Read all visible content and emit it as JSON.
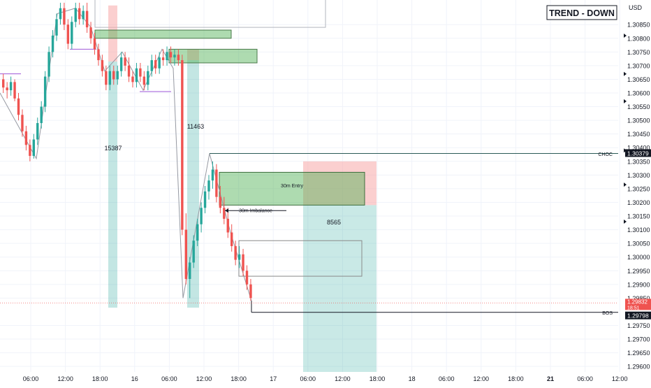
{
  "chart_data": {
    "type": "candlestick",
    "title": "",
    "currency": "USD",
    "trend_label": "TREND - DOWN",
    "y_ticks": [
      "1.30850",
      "1.30800",
      "1.30750",
      "1.30700",
      "1.30650",
      "1.30600",
      "1.30550",
      "1.30500",
      "1.30450",
      "1.30400",
      "1.30350",
      "1.30300",
      "1.30250",
      "1.30200",
      "1.30150",
      "1.30100",
      "1.30050",
      "1.30000",
      "1.29950",
      "1.29900",
      "1.29850",
      "1.29750",
      "1.29700",
      "1.29650",
      "1.29600"
    ],
    "ylim": [
      1.2958,
      1.3094
    ],
    "x_ticks": [
      {
        "label": "06:00",
        "bold": false
      },
      {
        "label": "12:00",
        "bold": false
      },
      {
        "label": "18:00",
        "bold": false
      },
      {
        "label": "16",
        "bold": false
      },
      {
        "label": "06:00",
        "bold": false
      },
      {
        "label": "12:00",
        "bold": false
      },
      {
        "label": "18:00",
        "bold": false
      },
      {
        "label": "17",
        "bold": false
      },
      {
        "label": "06:00",
        "bold": false
      },
      {
        "label": "12:00",
        "bold": false
      },
      {
        "label": "18:00",
        "bold": false
      },
      {
        "label": "18",
        "bold": false
      },
      {
        "label": "06:00",
        "bold": false
      },
      {
        "label": "12:00",
        "bold": false
      },
      {
        "label": "18:00",
        "bold": false
      },
      {
        "label": "21",
        "bold": true
      },
      {
        "label": "06:00",
        "bold": false
      },
      {
        "label": "12:00",
        "bold": false
      }
    ],
    "grid": true,
    "candles": [
      [
        1.3065,
        1.3067,
        1.306,
        1.3062
      ],
      [
        1.3062,
        1.3064,
        1.3058,
        1.3061
      ],
      [
        1.3061,
        1.3066,
        1.3059,
        1.3064
      ],
      [
        1.3064,
        1.3065,
        1.3057,
        1.3058
      ],
      [
        1.3058,
        1.306,
        1.305,
        1.3052
      ],
      [
        1.3052,
        1.3054,
        1.3044,
        1.3046
      ],
      [
        1.3046,
        1.3048,
        1.3039,
        1.3041
      ],
      [
        1.3041,
        1.3043,
        1.3035,
        1.3037
      ],
      [
        1.3037,
        1.3045,
        1.3036,
        1.3043
      ],
      [
        1.3043,
        1.3051,
        1.3041,
        1.3049
      ],
      [
        1.3049,
        1.3057,
        1.3047,
        1.3055
      ],
      [
        1.3055,
        1.3068,
        1.3053,
        1.3066
      ],
      [
        1.3066,
        1.3077,
        1.3064,
        1.3075
      ],
      [
        1.3075,
        1.3083,
        1.3073,
        1.3081
      ],
      [
        1.3081,
        1.3089,
        1.3079,
        1.3087
      ],
      [
        1.3087,
        1.3093,
        1.3085,
        1.3091
      ],
      [
        1.3091,
        1.3093,
        1.3083,
        1.3085
      ],
      [
        1.3085,
        1.3087,
        1.3076,
        1.3078
      ],
      [
        1.3078,
        1.3088,
        1.3076,
        1.3086
      ],
      [
        1.3086,
        1.3093,
        1.3084,
        1.3091
      ],
      [
        1.3091,
        1.3093,
        1.3085,
        1.3087
      ],
      [
        1.3087,
        1.3092,
        1.3085,
        1.309
      ],
      [
        1.309,
        1.3093,
        1.3082,
        1.3084
      ],
      [
        1.3084,
        1.3086,
        1.3078,
        1.308
      ],
      [
        1.308,
        1.3082,
        1.3074,
        1.3076
      ],
      [
        1.3076,
        1.3078,
        1.307,
        1.3072
      ],
      [
        1.3072,
        1.3074,
        1.3066,
        1.3068
      ],
      [
        1.3068,
        1.307,
        1.3061,
        1.3063
      ],
      [
        1.3063,
        1.307,
        1.3061,
        1.3068
      ],
      [
        1.3068,
        1.307,
        1.3063,
        1.3065
      ],
      [
        1.3065,
        1.307,
        1.3063,
        1.3068
      ],
      [
        1.3068,
        1.3075,
        1.3066,
        1.3073
      ],
      [
        1.3073,
        1.3075,
        1.3068,
        1.307
      ],
      [
        1.307,
        1.3073,
        1.3064,
        1.3066
      ],
      [
        1.3066,
        1.3068,
        1.3062,
        1.3064
      ],
      [
        1.3064,
        1.3071,
        1.3062,
        1.3069
      ],
      [
        1.3069,
        1.3071,
        1.3064,
        1.3066
      ],
      [
        1.3066,
        1.3068,
        1.3061,
        1.3063
      ],
      [
        1.3063,
        1.307,
        1.3061,
        1.3068
      ],
      [
        1.3068,
        1.3074,
        1.3066,
        1.3072
      ],
      [
        1.3072,
        1.3074,
        1.3067,
        1.3069
      ],
      [
        1.3069,
        1.3075,
        1.3067,
        1.3073
      ],
      [
        1.3073,
        1.3076,
        1.307,
        1.3072
      ],
      [
        1.3072,
        1.3077,
        1.307,
        1.3075
      ],
      [
        1.3075,
        1.3077,
        1.3071,
        1.3073
      ],
      [
        1.3073,
        1.3076,
        1.307,
        1.3074
      ],
      [
        1.3074,
        1.3076,
        1.307,
        1.3072
      ],
      [
        1.3072,
        1.3074,
        1.3008,
        1.301
      ],
      [
        1.301,
        1.3016,
        1.299,
        1.2992
      ],
      [
        1.2992,
        1.3,
        1.2985,
        1.2998
      ],
      [
        1.2998,
        1.3008,
        1.2996,
        1.3006
      ],
      [
        1.3006,
        1.3014,
        1.3004,
        1.3012
      ],
      [
        1.3012,
        1.302,
        1.3009,
        1.3018
      ],
      [
        1.3018,
        1.3026,
        1.3016,
        1.3024
      ],
      [
        1.3024,
        1.303,
        1.3021,
        1.3028
      ],
      [
        1.3028,
        1.3035,
        1.3025,
        1.3032
      ],
      [
        1.3032,
        1.3034,
        1.302,
        1.3022
      ],
      [
        1.3022,
        1.3026,
        1.3016,
        1.3018
      ],
      [
        1.3018,
        1.3022,
        1.3012,
        1.3014
      ],
      [
        1.3014,
        1.3018,
        1.3007,
        1.3009
      ],
      [
        1.3009,
        1.3012,
        1.3002,
        1.3004
      ],
      [
        1.3004,
        1.3006,
        1.2997,
        1.2999
      ],
      [
        1.2999,
        1.3004,
        1.2996,
        1.3001
      ],
      [
        1.3001,
        1.3003,
        1.2993,
        1.2995
      ],
      [
        1.2995,
        1.2997,
        1.2988,
        1.299
      ],
      [
        1.299,
        1.2992,
        1.2984,
        1.2985
      ]
    ],
    "colors": {
      "up": "#26a69a",
      "down": "#ef5350",
      "bos_line": "#131722",
      "choch_line": "#2a5a56",
      "structure_line": "#9e56d8",
      "supply_zone": "#4caf50",
      "stop_zone": "#f8a8a8",
      "target_zone": "#26a69a"
    },
    "labels": {
      "choch": "CHOC",
      "bos": "BOS",
      "entry_zone": "30m Entry",
      "imbalance": "30m Imbalance",
      "target_points": "8565",
      "leg1": "15387",
      "leg2": "11463"
    },
    "price_tags": [
      {
        "value": "1.30379",
        "color": "#131722",
        "kind": "choch"
      },
      {
        "value": "1.29832",
        "sub": "18:51",
        "color": "#ef5350",
        "kind": "current"
      },
      {
        "value": "1.29798",
        "color": "#131722",
        "kind": "bos"
      }
    ],
    "levels": {
      "choch": 1.30379,
      "current": 1.29832,
      "bos": 1.29798,
      "upper_zone": [
        1.308,
        1.3083
      ],
      "mid_zone": [
        1.3071,
        1.3076
      ],
      "entry_zone": [
        1.3019,
        1.3031
      ],
      "stop_zone": [
        1.3019,
        1.3035
      ],
      "target_zone": [
        1.2958,
        1.3019
      ],
      "imbalance_box": [
        1.2993,
        1.3006
      ],
      "old_high": 1.3084
    }
  }
}
